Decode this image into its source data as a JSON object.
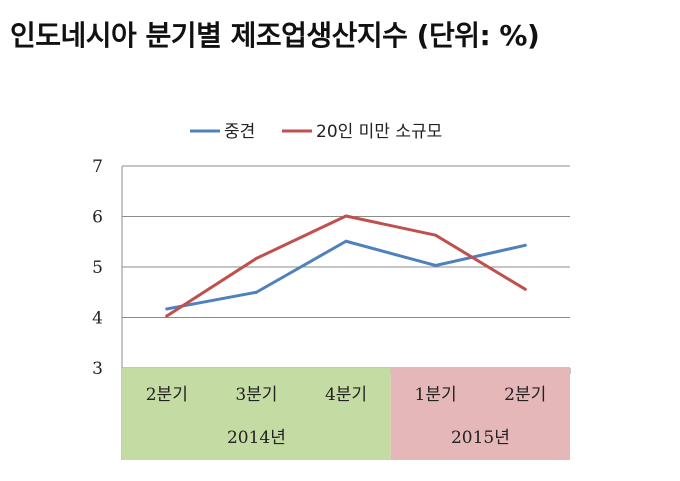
{
  "title": "인도네시아 분기별 제조업생산지수 (단위: %)",
  "chart_data": {
    "type": "line",
    "categories": [
      "2분기",
      "3분기",
      "4분기",
      "1분기",
      "2분기"
    ],
    "year_groups": [
      {
        "label": "2014년",
        "count": 3,
        "color": "#c5dba4"
      },
      {
        "label": "2015년",
        "count": 2,
        "color": "#e6b7b8"
      }
    ],
    "ylim": [
      3,
      7
    ],
    "yticks": [
      "3",
      "4",
      "5",
      "6",
      "7"
    ],
    "grid": true,
    "legend_position": "top",
    "series": [
      {
        "name": "중견",
        "color": "#4f81bd",
        "values": [
          4.17,
          4.5,
          5.51,
          5.03,
          5.43
        ]
      },
      {
        "name": "20인 미만 소규모",
        "color": "#c0504d",
        "values": [
          4.03,
          5.17,
          6.01,
          5.63,
          4.56
        ]
      }
    ]
  }
}
